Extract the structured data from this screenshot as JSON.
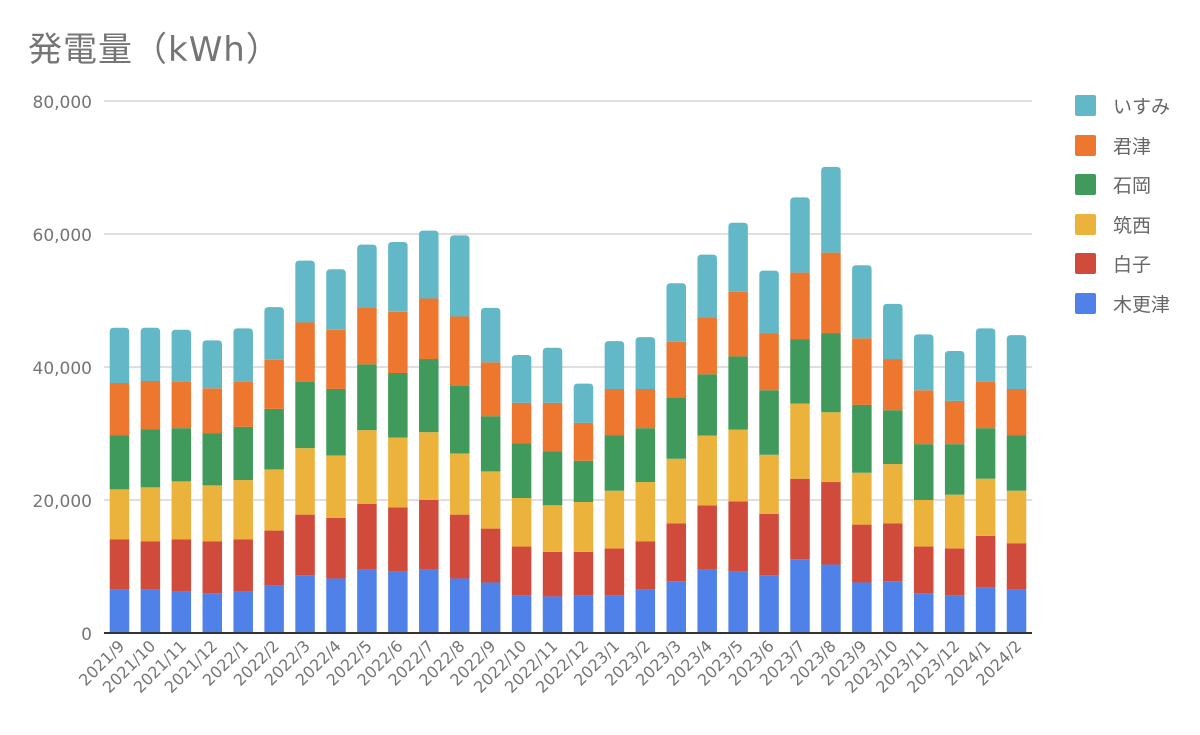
{
  "chart_data": {
    "type": "bar",
    "stacked": true,
    "title": "発電量（kWh）",
    "xlabel": "",
    "ylabel": "",
    "ylim": [
      0,
      80000
    ],
    "yticks": [
      0,
      20000,
      40000,
      60000,
      80000
    ],
    "ytick_labels": [
      "0",
      "20,000",
      "40,000",
      "60,000",
      "80,000"
    ],
    "grid": true,
    "legend_position": "right",
    "categories": [
      "2021/9",
      "2021/10",
      "2021/11",
      "2021/12",
      "2022/1",
      "2022/2",
      "2022/3",
      "2022/4",
      "2022/5",
      "2022/6",
      "2022/7",
      "2022/8",
      "2022/9",
      "2022/10",
      "2022/11",
      "2022/12",
      "2023/1",
      "2023/2",
      "2023/3",
      "2023/4",
      "2023/5",
      "2023/6",
      "2023/7",
      "2023/8",
      "2023/9",
      "2023/10",
      "2023/11",
      "2023/12",
      "2024/1",
      "2024/2"
    ],
    "series": [
      {
        "name": "木更津",
        "color": "#4f81e8",
        "values": [
          6500,
          6500,
          6200,
          6000,
          6200,
          7100,
          8700,
          8200,
          9500,
          9200,
          9500,
          8200,
          7600,
          5700,
          5500,
          5700,
          5700,
          6500,
          7800,
          9500,
          9200,
          8700,
          11100,
          10300,
          7600,
          7800,
          6000,
          5700,
          6800,
          6500
        ]
      },
      {
        "name": "白子",
        "color": "#d14b3c",
        "values": [
          7600,
          7300,
          7900,
          7800,
          7900,
          8300,
          9100,
          9100,
          9900,
          9700,
          10500,
          9600,
          8100,
          7300,
          6700,
          6500,
          7000,
          7300,
          8700,
          9700,
          10600,
          9200,
          12100,
          12400,
          8700,
          8700,
          7000,
          7000,
          7800,
          7000
        ]
      },
      {
        "name": "筑西",
        "color": "#ecb33c",
        "values": [
          7500,
          8100,
          8700,
          8400,
          8900,
          9200,
          10000,
          9400,
          11100,
          10500,
          10200,
          9200,
          8600,
          7300,
          7000,
          7500,
          8700,
          8900,
          9700,
          10500,
          10800,
          8900,
          11300,
          10500,
          7800,
          8900,
          7000,
          8100,
          8600,
          7900
        ]
      },
      {
        "name": "石岡",
        "color": "#3f9a5b",
        "values": [
          8100,
          8700,
          8000,
          7800,
          8000,
          9100,
          10000,
          10000,
          9900,
          9700,
          11000,
          10200,
          8300,
          8200,
          8100,
          6200,
          8300,
          8100,
          9200,
          9200,
          11000,
          9700,
          9700,
          11900,
          10200,
          8100,
          8400,
          7600,
          7600,
          8300
        ]
      },
      {
        "name": "君津",
        "color": "#ee772f",
        "values": [
          7900,
          7300,
          7000,
          6800,
          6800,
          7400,
          8900,
          8900,
          8600,
          9200,
          9100,
          10400,
          8100,
          6100,
          7300,
          5700,
          7000,
          5900,
          8400,
          8600,
          9700,
          8600,
          10000,
          12100,
          10000,
          7700,
          8100,
          6500,
          7000,
          7000
        ]
      },
      {
        "name": "いすみ",
        "color": "#62b8c6",
        "values": [
          8300,
          8000,
          7800,
          7200,
          8000,
          7900,
          9300,
          9100,
          9400,
          10500,
          10200,
          12200,
          8200,
          7200,
          8300,
          5900,
          7200,
          7800,
          8800,
          9400,
          10400,
          9400,
          11300,
          12900,
          11000,
          8300,
          8400,
          7500,
          8000,
          8100
        ]
      }
    ]
  },
  "colors": {
    "text": "#757575",
    "grid": "#cccccc",
    "axis": "#333333"
  }
}
